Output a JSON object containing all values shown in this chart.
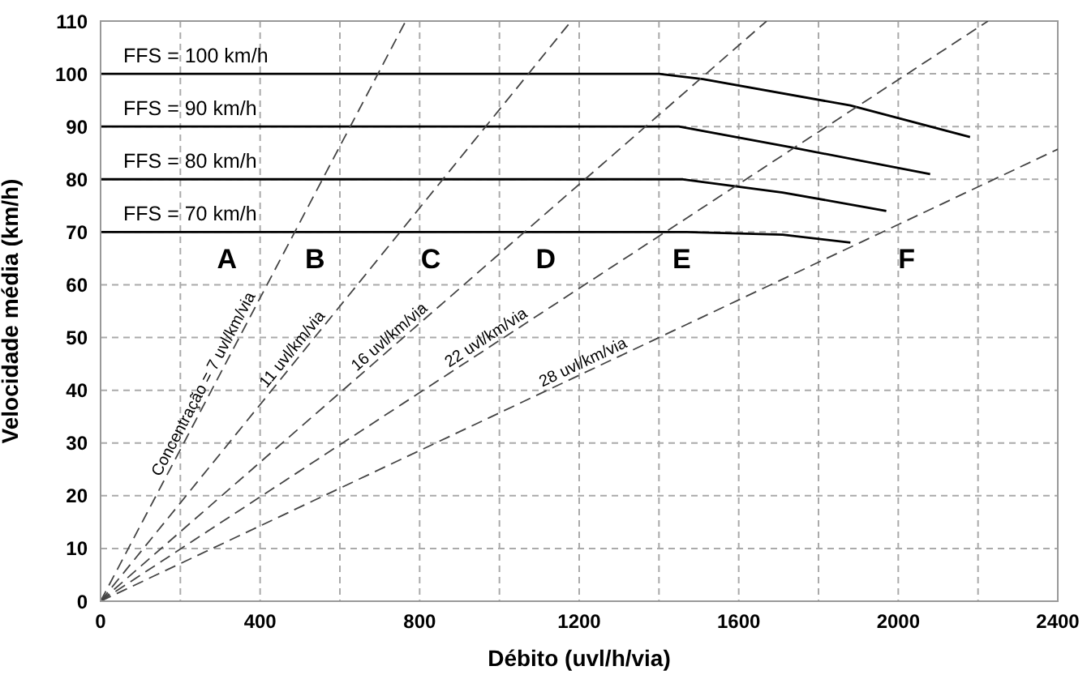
{
  "chart_data": {
    "type": "line",
    "xlabel": "Débito (uvl/h/via)",
    "ylabel": "Velocidade média (km/h)",
    "xlim": [
      0,
      2400
    ],
    "ylim": [
      0,
      110
    ],
    "xticks": [
      0,
      {
        "value": 200,
        "label": null
      },
      400,
      {
        "value": 600,
        "label": null
      },
      800,
      {
        "value": 1000,
        "label": null
      },
      1200,
      {
        "value": 1400,
        "label": null
      },
      1600,
      {
        "value": 1800,
        "label": null
      },
      2000,
      {
        "value": 2200,
        "label": null
      },
      2400
    ],
    "yticks": [
      0,
      10,
      20,
      30,
      40,
      50,
      60,
      70,
      80,
      90,
      100,
      110
    ],
    "grid": true,
    "legend": false,
    "marker": "none",
    "series": [
      {
        "name": "FFS = 100 km/h",
        "color": "#000000",
        "line_style": "solid",
        "x": [
          0,
          1400,
          1510,
          1880,
          2180
        ],
        "values": [
          100,
          100,
          99,
          94,
          88
        ]
      },
      {
        "name": "FFS = 90 km/h",
        "color": "#000000",
        "line_style": "solid",
        "x": [
          0,
          1450,
          1735,
          2080
        ],
        "values": [
          90,
          90,
          86,
          81
        ]
      },
      {
        "name": "FFS = 80 km/h",
        "color": "#000000",
        "line_style": "solid",
        "x": [
          0,
          1460,
          1710,
          1970
        ],
        "values": [
          80,
          80,
          77.5,
          74
        ]
      },
      {
        "name": "FFS = 70 km/h",
        "color": "#000000",
        "line_style": "solid",
        "x": [
          0,
          1470,
          1710,
          1880
        ],
        "values": [
          70,
          70,
          69.5,
          68
        ]
      },
      {
        "color": "#444444",
        "line_style": "dashed",
        "x": [
          0,
          765
        ],
        "values": [
          0,
          110
        ]
      },
      {
        "color": "#444444",
        "line_style": "dashed",
        "x": [
          0,
          1180
        ],
        "values": [
          0,
          110
        ]
      },
      {
        "color": "#444444",
        "line_style": "dashed",
        "x": [
          0,
          1670
        ],
        "values": [
          0,
          110
        ]
      },
      {
        "color": "#444444",
        "line_style": "dashed",
        "x": [
          0,
          2225
        ],
        "values": [
          0,
          110
        ]
      },
      {
        "color": "#444444",
        "line_style": "dashed",
        "x": [
          0,
          2400
        ],
        "values": [
          0,
          85.7
        ]
      }
    ],
    "annotations": [
      {
        "text": "Concentração = 7 uvl/km/via",
        "x": 280,
        "y": 40.3
      },
      {
        "text": "11 uvl/km/via",
        "x": 500,
        "y": 46.6
      },
      {
        "text": "16 uvl/km/via",
        "x": 740,
        "y": 48.7
      },
      {
        "text": "22 uvl/km/via",
        "x": 980,
        "y": 48.4
      },
      {
        "text": "28 uvl/km/via",
        "x": 1220,
        "y": 43.6
      },
      "A",
      "B",
      "C",
      "D",
      "E",
      "F"
    ]
  }
}
